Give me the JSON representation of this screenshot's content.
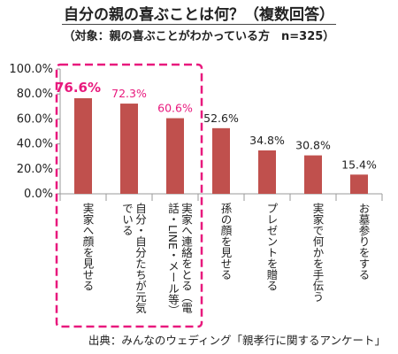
{
  "title": "自分の親の喜ぶことは何？（複数回答）",
  "subtitle": "（対象：親の喜ぶことがわかっている方　n=325）",
  "source": "出典：みんなのウェディング「親孝行に関するアンケート」",
  "colors": {
    "bar": "#c0504d",
    "highlight": "#e8197d",
    "highlight_box": "#e8197d",
    "axis": "#9a9a9a"
  },
  "chart_data": {
    "type": "bar",
    "title": "自分の親の喜ぶことは何？（複数回答）",
    "subtitle": "（対象：親の喜ぶことがわかっている方　n=325）",
    "categories": [
      "実家へ顔を見せる",
      "自分・自分たちが元気でいる",
      "実家へ連絡をとる（電話・LINE・メール等）",
      "孫の顔を見せる",
      "プレゼントを贈る",
      "実家で何かを手伝う",
      "お墓参りをする"
    ],
    "category_lines": [
      [
        "実家へ顔を見せる"
      ],
      [
        "自分・自分たちが元気",
        "でいる"
      ],
      [
        "実家へ連絡をとる（電",
        "話・LINE・メール等）"
      ],
      [
        "孫の顔を見せる"
      ],
      [
        "プレゼントを贈る"
      ],
      [
        "実家で何かを手伝う"
      ],
      [
        "お墓参りをする"
      ]
    ],
    "values": [
      76.6,
      72.3,
      60.6,
      52.6,
      34.8,
      30.8,
      15.4
    ],
    "data_labels": [
      "76.6%",
      "72.3%",
      "60.6%",
      "52.6%",
      "34.8%",
      "30.8%",
      "15.4%"
    ],
    "highlighted_categories": 3,
    "y_ticks": [
      "0.0%",
      "20.0%",
      "40.0%",
      "60.0%",
      "80.0%",
      "100.0%"
    ],
    "ylim": [
      0,
      100
    ],
    "grid": false,
    "legend": "none"
  }
}
